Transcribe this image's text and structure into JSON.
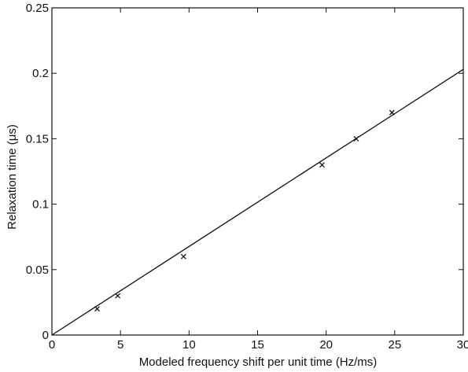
{
  "chart_data": {
    "type": "scatter",
    "title": "",
    "xlabel": "Modeled frequency shift per unit time (Hz/ms)",
    "ylabel": "Relaxation time (μs)",
    "xlim": [
      0,
      30
    ],
    "ylim": [
      0,
      0.25
    ],
    "x_ticks": [
      0,
      5,
      10,
      15,
      20,
      25,
      30
    ],
    "y_ticks": [
      0,
      0.05,
      0.1,
      0.15,
      0.2,
      0.25
    ],
    "x_tick_labels": [
      "0",
      "5",
      "10",
      "15",
      "20",
      "25",
      "30"
    ],
    "y_tick_labels": [
      "0",
      "0.05",
      "0.1",
      "0.15",
      "0.2",
      "0.25"
    ],
    "grid": false,
    "series": [
      {
        "type": "scatter",
        "marker": "x",
        "color": "#111111",
        "x": [
          3.3,
          4.8,
          9.6,
          19.7,
          22.2,
          24.8
        ],
        "y": [
          0.02,
          0.03,
          0.06,
          0.13,
          0.15,
          0.17
        ]
      },
      {
        "type": "line",
        "color": "#111111",
        "x": [
          0,
          30
        ],
        "y": [
          0,
          0.203
        ]
      }
    ]
  }
}
